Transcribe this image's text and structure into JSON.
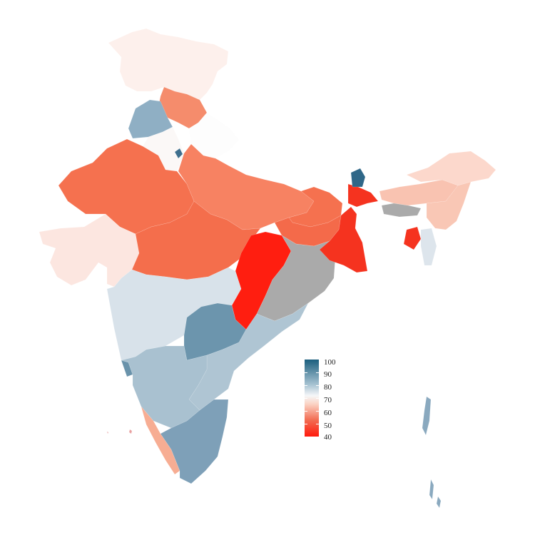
{
  "legend": {
    "labels": [
      "100",
      "90",
      "80",
      "70",
      "60",
      "50",
      "40"
    ],
    "range": [
      40,
      100
    ],
    "colors": {
      "high": "#1b5f7e",
      "mid": "#f5f7f9",
      "low": "#ff1a0d"
    }
  },
  "map": {
    "no_data_color": "#aaaaaa"
  }
}
